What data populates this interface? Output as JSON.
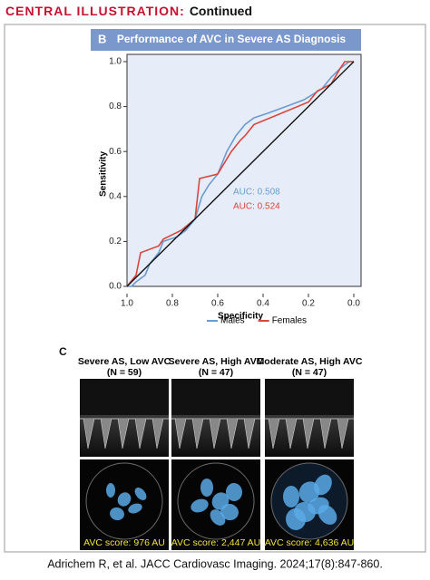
{
  "header": {
    "title": "CENTRAL ILLUSTRATION:",
    "subtitle": "Continued"
  },
  "chart_data": {
    "type": "line",
    "panel_label": "B",
    "title": "Performance of AVC in Severe AS Diagnosis",
    "xlabel": "Specificity",
    "ylabel": "Sensitivity",
    "xlim": [
      1,
      0
    ],
    "ylim": [
      0,
      1
    ],
    "xticks": [
      {
        "value": 1,
        "label": "1.0"
      },
      {
        "value": 0.8,
        "label": "0.8"
      },
      {
        "value": 0.6,
        "label": "0.6"
      },
      {
        "value": 0.4,
        "label": "0.4"
      },
      {
        "value": 0.2,
        "label": "0.2"
      },
      {
        "value": 0,
        "label": "0.0"
      }
    ],
    "yticks": [
      {
        "value": 0,
        "label": "0.0"
      },
      {
        "value": 0.2,
        "label": "0.2"
      },
      {
        "value": 0.4,
        "label": "0.4"
      },
      {
        "value": 0.6,
        "label": "0.6"
      },
      {
        "value": 0.8,
        "label": "0.8"
      },
      {
        "value": 1,
        "label": "1.0"
      }
    ],
    "legend": "bottom",
    "series": [
      {
        "name": "Males",
        "color": "#6a9bd1",
        "x": [
          1,
          0.98,
          0.96,
          0.92,
          0.9,
          0.86,
          0.84,
          0.78,
          0.74,
          0.7,
          0.67,
          0.64,
          0.6,
          0.56,
          0.52,
          0.48,
          0.44,
          0.38,
          0.3,
          0.22,
          0.14,
          0.1,
          0.06,
          0.02,
          0
        ],
        "values": [
          0,
          0,
          0.02,
          0.05,
          0.1,
          0.15,
          0.2,
          0.22,
          0.25,
          0.3,
          0.4,
          0.45,
          0.5,
          0.6,
          0.67,
          0.72,
          0.75,
          0.77,
          0.8,
          0.83,
          0.88,
          0.93,
          0.97,
          1,
          1
        ],
        "annotation": "AUC: 0.508"
      },
      {
        "name": "Females",
        "color": "#d9463f",
        "x": [
          1,
          0.96,
          0.94,
          0.86,
          0.84,
          0.76,
          0.7,
          0.68,
          0.6,
          0.54,
          0.5,
          0.48,
          0.44,
          0.2,
          0.16,
          0.1,
          0.06,
          0.04,
          0
        ],
        "values": [
          0,
          0.05,
          0.15,
          0.18,
          0.21,
          0.25,
          0.3,
          0.48,
          0.5,
          0.6,
          0.65,
          0.67,
          0.72,
          0.82,
          0.87,
          0.9,
          0.97,
          1,
          1
        ],
        "annotation": "AUC: 0.524"
      }
    ]
  },
  "panel_c": {
    "label": "C",
    "columns": [
      {
        "title": "Severe AS, Low AVC",
        "n": "(N = 59)",
        "score": "AVC score: 976 AU"
      },
      {
        "title": "Severe AS, High AVC",
        "n": "(N = 47)",
        "score": "AVC score: 2,447 AU"
      },
      {
        "title": "Moderate AS, High AVC",
        "n": "(N = 47)",
        "score": "AVC score: 4,636 AU"
      }
    ]
  },
  "citation": "Adrichem R, et al. JACC Cardiovasc Imaging. 2024;17(8):847-860."
}
